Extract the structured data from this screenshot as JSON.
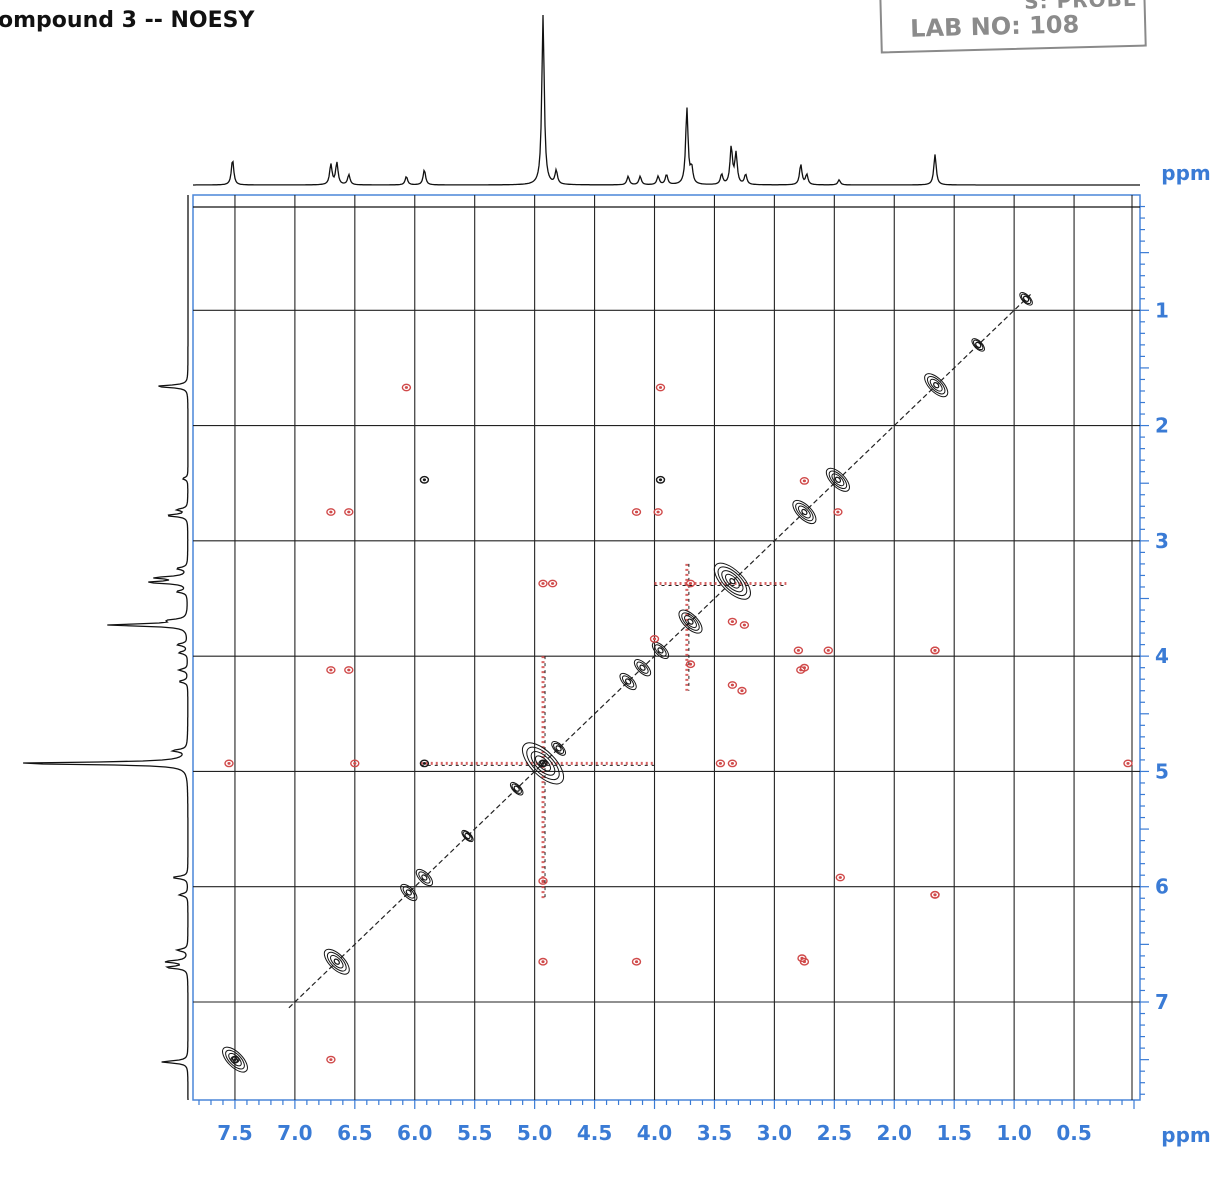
{
  "title": "ompound  3 -- NOESY",
  "stamp": {
    "top_text": "S: PROBE",
    "lab_text": "LAB NO: 108"
  },
  "chart_data": {
    "type": "heatmap",
    "subtype": "2D NOESY contour plot",
    "x_axis": {
      "label": "ppm",
      "ticks": [
        "7.5",
        "7.0",
        "6.5",
        "6.0",
        "5.5",
        "5.0",
        "4.5",
        "4.0",
        "3.5",
        "3.0",
        "2.5",
        "2.0",
        "1.5",
        "1.0",
        "0.5"
      ],
      "range": [
        7.85,
        -0.05
      ],
      "reversed": true
    },
    "y_axis": {
      "label": "ppm",
      "ticks": [
        "1",
        "2",
        "3",
        "4",
        "5",
        "6",
        "7"
      ],
      "range": [
        0,
        7.85
      ],
      "position": "right"
    },
    "grid": true,
    "colors": {
      "positive": "#1a1a1a",
      "negative": "#d04a4a",
      "axis": "#3a7bd5",
      "frame": "#4a86d9"
    },
    "projection_peaks": [
      {
        "ppm": 7.52,
        "height": 0.15
      },
      {
        "ppm": 6.7,
        "height": 0.12
      },
      {
        "ppm": 6.65,
        "height": 0.13
      },
      {
        "ppm": 6.55,
        "height": 0.06
      },
      {
        "ppm": 6.07,
        "height": 0.05
      },
      {
        "ppm": 5.92,
        "height": 0.09
      },
      {
        "ppm": 4.93,
        "height": 1.0
      },
      {
        "ppm": 4.82,
        "height": 0.08
      },
      {
        "ppm": 4.22,
        "height": 0.05
      },
      {
        "ppm": 4.12,
        "height": 0.05
      },
      {
        "ppm": 3.97,
        "height": 0.05
      },
      {
        "ppm": 3.9,
        "height": 0.06
      },
      {
        "ppm": 3.73,
        "height": 0.45
      },
      {
        "ppm": 3.69,
        "height": 0.09
      },
      {
        "ppm": 3.44,
        "height": 0.06
      },
      {
        "ppm": 3.36,
        "height": 0.22
      },
      {
        "ppm": 3.32,
        "height": 0.18
      },
      {
        "ppm": 3.24,
        "height": 0.06
      },
      {
        "ppm": 2.78,
        "height": 0.12
      },
      {
        "ppm": 2.73,
        "height": 0.06
      },
      {
        "ppm": 2.46,
        "height": 0.03
      },
      {
        "ppm": 1.66,
        "height": 0.18
      }
    ],
    "diagonal_peaks": [
      {
        "ppm": 7.5,
        "intensity": 1.0
      },
      {
        "ppm": 6.65,
        "intensity": 1.0
      },
      {
        "ppm": 6.05,
        "intensity": 0.8
      },
      {
        "ppm": 5.92,
        "intensity": 0.8
      },
      {
        "ppm": 5.56,
        "intensity": 0.4
      },
      {
        "ppm": 5.15,
        "intensity": 0.5
      },
      {
        "ppm": 4.93,
        "intensity": 1.4
      },
      {
        "ppm": 4.8,
        "intensity": 0.6
      },
      {
        "ppm": 4.22,
        "intensity": 0.8
      },
      {
        "ppm": 4.1,
        "intensity": 0.8
      },
      {
        "ppm": 3.95,
        "intensity": 0.8
      },
      {
        "ppm": 3.7,
        "intensity": 0.9
      },
      {
        "ppm": 3.35,
        "intensity": 1.2
      },
      {
        "ppm": 2.75,
        "intensity": 0.9
      },
      {
        "ppm": 2.47,
        "intensity": 0.9
      },
      {
        "ppm": 1.65,
        "intensity": 0.9
      },
      {
        "ppm": 1.3,
        "intensity": 0.5
      },
      {
        "ppm": 0.9,
        "intensity": 0.5
      }
    ],
    "cross_peaks": [
      {
        "x": 6.07,
        "y": 1.67,
        "sign": "negative"
      },
      {
        "x": 3.95,
        "y": 1.67,
        "sign": "negative"
      },
      {
        "x": 1.66,
        "y": 6.07,
        "sign": "negative"
      },
      {
        "x": 1.66,
        "y": 3.95,
        "sign": "negative"
      },
      {
        "x": 6.7,
        "y": 2.75,
        "sign": "negative"
      },
      {
        "x": 6.55,
        "y": 2.75,
        "sign": "negative"
      },
      {
        "x": 4.15,
        "y": 2.75,
        "sign": "negative"
      },
      {
        "x": 3.97,
        "y": 2.75,
        "sign": "negative"
      },
      {
        "x": 2.75,
        "y": 6.65,
        "sign": "negative"
      },
      {
        "x": 2.75,
        "y": 4.1,
        "sign": "negative"
      },
      {
        "x": 2.75,
        "y": 2.48,
        "sign": "negative"
      },
      {
        "x": 2.47,
        "y": 2.75,
        "sign": "negative"
      },
      {
        "x": 5.92,
        "y": 2.47,
        "sign": "positive"
      },
      {
        "x": 3.95,
        "y": 2.47,
        "sign": "positive"
      },
      {
        "x": 4.93,
        "y": 3.37,
        "sign": "negative"
      },
      {
        "x": 4.85,
        "y": 3.37,
        "sign": "negative"
      },
      {
        "x": 3.7,
        "y": 3.37,
        "sign": "negative"
      },
      {
        "x": 3.35,
        "y": 3.7,
        "sign": "negative"
      },
      {
        "x": 3.25,
        "y": 3.73,
        "sign": "negative"
      },
      {
        "x": 2.8,
        "y": 3.95,
        "sign": "negative"
      },
      {
        "x": 2.55,
        "y": 3.95,
        "sign": "negative"
      },
      {
        "x": 1.66,
        "y": 3.95,
        "sign": "negative"
      },
      {
        "x": 2.78,
        "y": 4.12,
        "sign": "negative"
      },
      {
        "x": 6.7,
        "y": 4.12,
        "sign": "negative"
      },
      {
        "x": 6.55,
        "y": 4.12,
        "sign": "negative"
      },
      {
        "x": 4.93,
        "y": 4.93,
        "sign": "positive"
      },
      {
        "x": 5.92,
        "y": 4.93,
        "sign": "positive"
      },
      {
        "x": 6.5,
        "y": 4.93,
        "sign": "negative"
      },
      {
        "x": 3.45,
        "y": 4.93,
        "sign": "negative"
      },
      {
        "x": 3.35,
        "y": 4.93,
        "sign": "negative"
      },
      {
        "x": 7.55,
        "y": 4.93,
        "sign": "negative"
      },
      {
        "x": 0.05,
        "y": 4.93,
        "sign": "negative"
      },
      {
        "x": 4.93,
        "y": 5.95,
        "sign": "negative"
      },
      {
        "x": 4.93,
        "y": 6.65,
        "sign": "negative"
      },
      {
        "x": 4.15,
        "y": 6.65,
        "sign": "negative"
      },
      {
        "x": 2.77,
        "y": 6.62,
        "sign": "negative"
      },
      {
        "x": 1.66,
        "y": 6.07,
        "sign": "negative"
      },
      {
        "x": 2.45,
        "y": 5.92,
        "sign": "negative"
      },
      {
        "x": 6.7,
        "y": 7.5,
        "sign": "negative"
      },
      {
        "x": 7.5,
        "y": 7.5,
        "sign": "positive"
      },
      {
        "x": 3.7,
        "y": 4.07,
        "sign": "negative"
      },
      {
        "x": 4.0,
        "y": 3.85,
        "sign": "negative"
      },
      {
        "x": 3.35,
        "y": 4.25,
        "sign": "negative"
      },
      {
        "x": 3.27,
        "y": 4.3,
        "sign": "negative"
      }
    ],
    "streaks": [
      {
        "orientation": "vertical",
        "at": 4.93,
        "from": 4.0,
        "to": 6.1
      },
      {
        "orientation": "horizontal",
        "at": 4.93,
        "from": 5.95,
        "to": 4.0
      },
      {
        "orientation": "vertical",
        "at": 3.73,
        "from": 3.2,
        "to": 4.3
      },
      {
        "orientation": "horizontal",
        "at": 3.37,
        "from": 4.0,
        "to": 2.9
      }
    ]
  }
}
